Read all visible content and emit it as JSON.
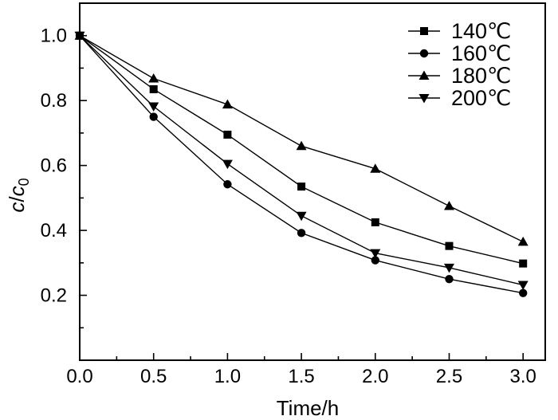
{
  "chart_data": {
    "type": "line",
    "title": "",
    "xlabel": "Time/h",
    "ylabel_parts": {
      "c": "c",
      "slash": "/",
      "c0": "c",
      "sub": "0"
    },
    "xlim": [
      0.0,
      3.15
    ],
    "ylim": [
      0.0,
      1.1
    ],
    "x_ticks": [
      0.0,
      0.5,
      1.0,
      1.5,
      2.0,
      2.5,
      3.0
    ],
    "x_tick_labels": [
      "0.0",
      "0.5",
      "1.0",
      "1.5",
      "2.0",
      "2.5",
      "3.0"
    ],
    "y_ticks": [
      0.2,
      0.4,
      0.6,
      0.8,
      1.0
    ],
    "y_tick_labels": [
      "0.2",
      "0.4",
      "0.6",
      "0.8",
      "1.0"
    ],
    "legend_position": "top-right",
    "grid": false,
    "x": [
      0.0,
      0.5,
      1.0,
      1.5,
      2.0,
      2.5,
      3.0
    ],
    "series": [
      {
        "name": "140℃",
        "marker": "square",
        "values": [
          1.0,
          0.835,
          0.695,
          0.535,
          0.425,
          0.352,
          0.298
        ]
      },
      {
        "name": "160℃",
        "marker": "circle",
        "values": [
          1.0,
          0.75,
          0.542,
          0.392,
          0.308,
          0.25,
          0.207
        ]
      },
      {
        "name": "180℃",
        "marker": "triangle-up",
        "values": [
          1.0,
          0.868,
          0.788,
          0.66,
          0.59,
          0.475,
          0.365
        ]
      },
      {
        "name": "200℃",
        "marker": "triangle-down",
        "values": [
          1.0,
          0.782,
          0.605,
          0.445,
          0.33,
          0.285,
          0.232
        ]
      }
    ]
  }
}
